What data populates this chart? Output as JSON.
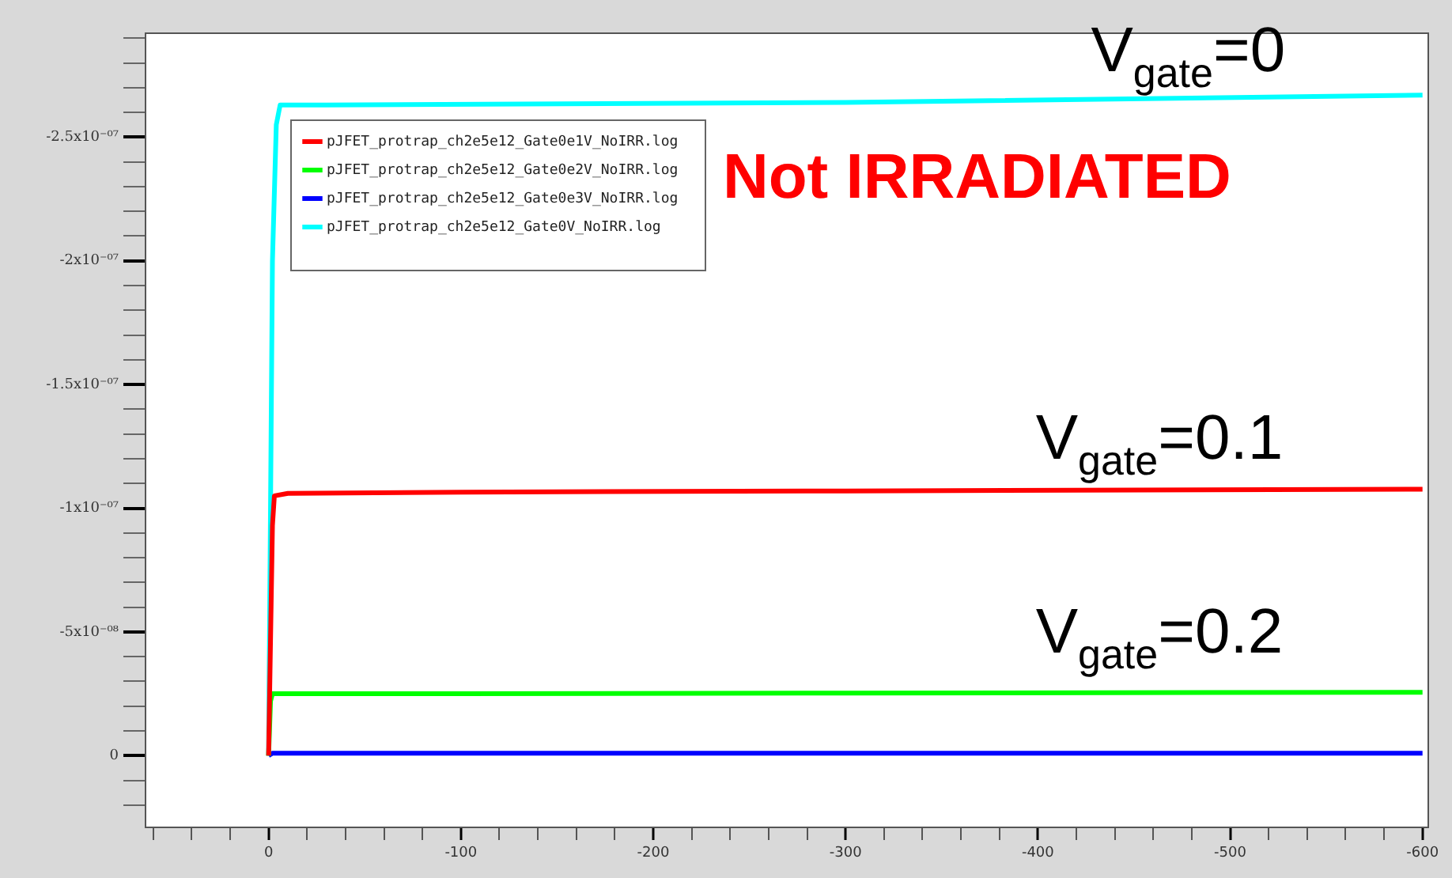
{
  "chart_data": {
    "type": "line",
    "xlim": [
      64,
      -603
    ],
    "xticks": [
      {
        "value": 60,
        "label": null
      },
      {
        "value": 40,
        "label": null
      },
      {
        "value": 20,
        "label": null
      },
      0,
      {
        "value": -20,
        "label": null
      },
      {
        "value": -40,
        "label": null
      },
      {
        "value": -60,
        "label": null
      },
      {
        "value": -80,
        "label": null
      },
      -100,
      {
        "value": -120,
        "label": null
      },
      {
        "value": -140,
        "label": null
      },
      {
        "value": -160,
        "label": null
      },
      {
        "value": -180,
        "label": null
      },
      -200,
      {
        "value": -220,
        "label": null
      },
      {
        "value": -240,
        "label": null
      },
      {
        "value": -260,
        "label": null
      },
      {
        "value": -280,
        "label": null
      },
      -300,
      {
        "value": -320,
        "label": null
      },
      {
        "value": -340,
        "label": null
      },
      {
        "value": -360,
        "label": null
      },
      {
        "value": -380,
        "label": null
      },
      -400,
      {
        "value": -420,
        "label": null
      },
      {
        "value": -440,
        "label": null
      },
      {
        "value": -460,
        "label": null
      },
      {
        "value": -480,
        "label": null
      },
      -500,
      {
        "value": -520,
        "label": null
      },
      {
        "value": -540,
        "label": null
      },
      {
        "value": -560,
        "label": null
      },
      {
        "value": -580,
        "label": null
      },
      -600
    ],
    "ylim": [
      2.9e-08,
      -2.92e-07
    ],
    "yticks": [
      {
        "value": 2e-08,
        "label": null
      },
      {
        "value": 1e-08,
        "label": null
      },
      0,
      {
        "value": -1e-08,
        "label": null
      },
      {
        "value": -2e-08,
        "label": null
      },
      {
        "value": -3e-08,
        "label": null
      },
      {
        "value": -4e-08,
        "label": null
      },
      {
        "value": -5e-08,
        "label": "-5x10⁻⁰⁸"
      },
      {
        "value": -6e-08,
        "label": null
      },
      {
        "value": -7e-08,
        "label": null
      },
      {
        "value": -8e-08,
        "label": null
      },
      {
        "value": -9e-08,
        "label": null
      },
      {
        "value": -1e-07,
        "label": "-1x10⁻⁰⁷"
      },
      {
        "value": -1.1e-07,
        "label": null
      },
      {
        "value": -1.2e-07,
        "label": null
      },
      {
        "value": -1.3e-07,
        "label": null
      },
      {
        "value": -1.4e-07,
        "label": null
      },
      {
        "value": -1.5e-07,
        "label": "-1.5x10⁻⁰⁷"
      },
      {
        "value": -1.6e-07,
        "label": null
      },
      {
        "value": -1.7e-07,
        "label": null
      },
      {
        "value": -1.8e-07,
        "label": null
      },
      {
        "value": -1.9e-07,
        "label": null
      },
      {
        "value": -2e-07,
        "label": "-2x10⁻⁰⁷"
      },
      {
        "value": -2.1e-07,
        "label": null
      },
      {
        "value": -2.2e-07,
        "label": null
      },
      {
        "value": -2.3e-07,
        "label": null
      },
      {
        "value": -2.4e-07,
        "label": null
      },
      {
        "value": -2.5e-07,
        "label": "-2.5x10⁻⁰⁷"
      },
      {
        "value": -2.6e-07,
        "label": null
      },
      {
        "value": -2.7e-07,
        "label": null
      },
      {
        "value": -2.8e-07,
        "label": null
      },
      {
        "value": -2.9e-07,
        "label": null
      }
    ],
    "grid": false,
    "legend": "top left",
    "series": [
      {
        "name": "pJFET_protrap_ch2e5e12_Gate0e1V_NoIRR.log",
        "color": "#ff0000",
        "x": [
          0,
          -2,
          -3,
          -10,
          -100,
          -300,
          -600
        ],
        "values": [
          0,
          -9.3e-08,
          -1.05e-07,
          -1.06e-07,
          -1.065e-07,
          -1.07e-07,
          -1.077e-07
        ]
      },
      {
        "name": "pJFET_protrap_ch2e5e12_Gate0e2V_NoIRR.log",
        "color": "#00ff00",
        "x": [
          0,
          -1,
          -2,
          -100,
          -300,
          -600
        ],
        "values": [
          0,
          -2.2e-08,
          -2.5e-08,
          -2.5e-08,
          -2.53e-08,
          -2.56e-08
        ]
      },
      {
        "name": "pJFET_protrap_ch2e5e12_Gate0e3V_NoIRR.log",
        "color": "#0000ff",
        "x": [
          0,
          -2,
          -300,
          -600
        ],
        "values": [
          0,
          -1e-09,
          -1e-09,
          -1e-09
        ]
      },
      {
        "name": "pJFET_protrap_ch2e5e12_Gate0V_NoIRR.log",
        "color": "#00ffff",
        "x": [
          0,
          -2,
          -4,
          -6,
          -30,
          -300,
          -600
        ],
        "values": [
          0,
          -2e-07,
          -2.55e-07,
          -2.63e-07,
          -2.63e-07,
          -2.64e-07,
          -2.67e-07
        ]
      }
    ],
    "annotations": [
      "Not IRRADIATED",
      "V$_{gate}$=0",
      "V$_{gate}$=0.1",
      "V$_{gate}$=0.2"
    ]
  }
}
